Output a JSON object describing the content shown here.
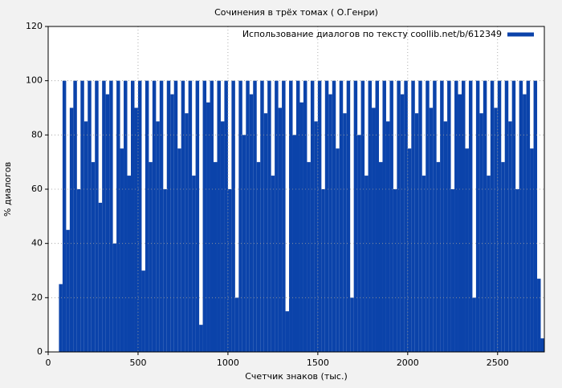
{
  "chart_data": {
    "type": "bar",
    "title": "Сочинения в трёх томах ( О.Генри)",
    "xlabel": "Счетчик знаков (тыс.)",
    "ylabel": "% диалогов",
    "color": "#0b43aa",
    "grid": true,
    "legend": "upper right",
    "series": [
      {
        "name": "Использование диалогов по тексту coollib.net/b/612349",
        "color": "#0b43aa",
        "x": [
          70,
          90,
          110,
          130,
          150,
          170,
          190,
          210,
          230,
          250,
          270,
          290,
          310,
          330,
          350,
          370,
          390,
          410,
          430,
          450,
          470,
          490,
          510,
          530,
          550,
          570,
          590,
          610,
          630,
          650,
          670,
          690,
          710,
          730,
          750,
          770,
          790,
          810,
          830,
          850,
          870,
          890,
          910,
          930,
          950,
          970,
          990,
          1010,
          1030,
          1050,
          1070,
          1090,
          1110,
          1130,
          1150,
          1170,
          1190,
          1210,
          1230,
          1250,
          1270,
          1290,
          1310,
          1330,
          1350,
          1370,
          1390,
          1410,
          1430,
          1450,
          1470,
          1490,
          1510,
          1530,
          1550,
          1570,
          1590,
          1610,
          1630,
          1650,
          1670,
          1690,
          1710,
          1730,
          1750,
          1770,
          1790,
          1810,
          1830,
          1850,
          1870,
          1890,
          1910,
          1930,
          1950,
          1970,
          1990,
          2010,
          2030,
          2050,
          2070,
          2090,
          2110,
          2130,
          2150,
          2170,
          2190,
          2210,
          2230,
          2250,
          2270,
          2290,
          2310,
          2330,
          2350,
          2370,
          2390,
          2410,
          2430,
          2450,
          2470,
          2490,
          2510,
          2530,
          2550,
          2570,
          2590,
          2610,
          2630,
          2650,
          2670,
          2690,
          2710,
          2730,
          2750
        ],
        "values": [
          25,
          100,
          45,
          90,
          100,
          60,
          100,
          85,
          100,
          70,
          100,
          55,
          100,
          95,
          100,
          40,
          100,
          75,
          100,
          65,
          100,
          90,
          100,
          30,
          100,
          70,
          100,
          85,
          100,
          60,
          100,
          95,
          100,
          75,
          100,
          88,
          100,
          65,
          100,
          10,
          100,
          92,
          100,
          70,
          100,
          85,
          100,
          60,
          100,
          20,
          100,
          80,
          100,
          95,
          100,
          70,
          100,
          88,
          100,
          65,
          100,
          90,
          100,
          15,
          100,
          80,
          100,
          92,
          100,
          70,
          100,
          85,
          100,
          60,
          100,
          95,
          100,
          75,
          100,
          88,
          100,
          20,
          100,
          80,
          100,
          65,
          100,
          90,
          100,
          70,
          100,
          85,
          100,
          60,
          100,
          95,
          100,
          75,
          100,
          88,
          100,
          65,
          100,
          90,
          100,
          70,
          100,
          85,
          100,
          60,
          100,
          95,
          100,
          75,
          100,
          20,
          100,
          88,
          100,
          65,
          100,
          90,
          100,
          70,
          100,
          85,
          100,
          60,
          100,
          95,
          100,
          75,
          100,
          27,
          5
        ]
      }
    ],
    "xlim": [
      0,
      2760
    ],
    "xticks": [
      0,
      500,
      1000,
      1500,
      2000,
      2500
    ],
    "ylim": [
      0,
      120
    ],
    "yticks": [
      0,
      20,
      40,
      60,
      80,
      100,
      120
    ]
  }
}
